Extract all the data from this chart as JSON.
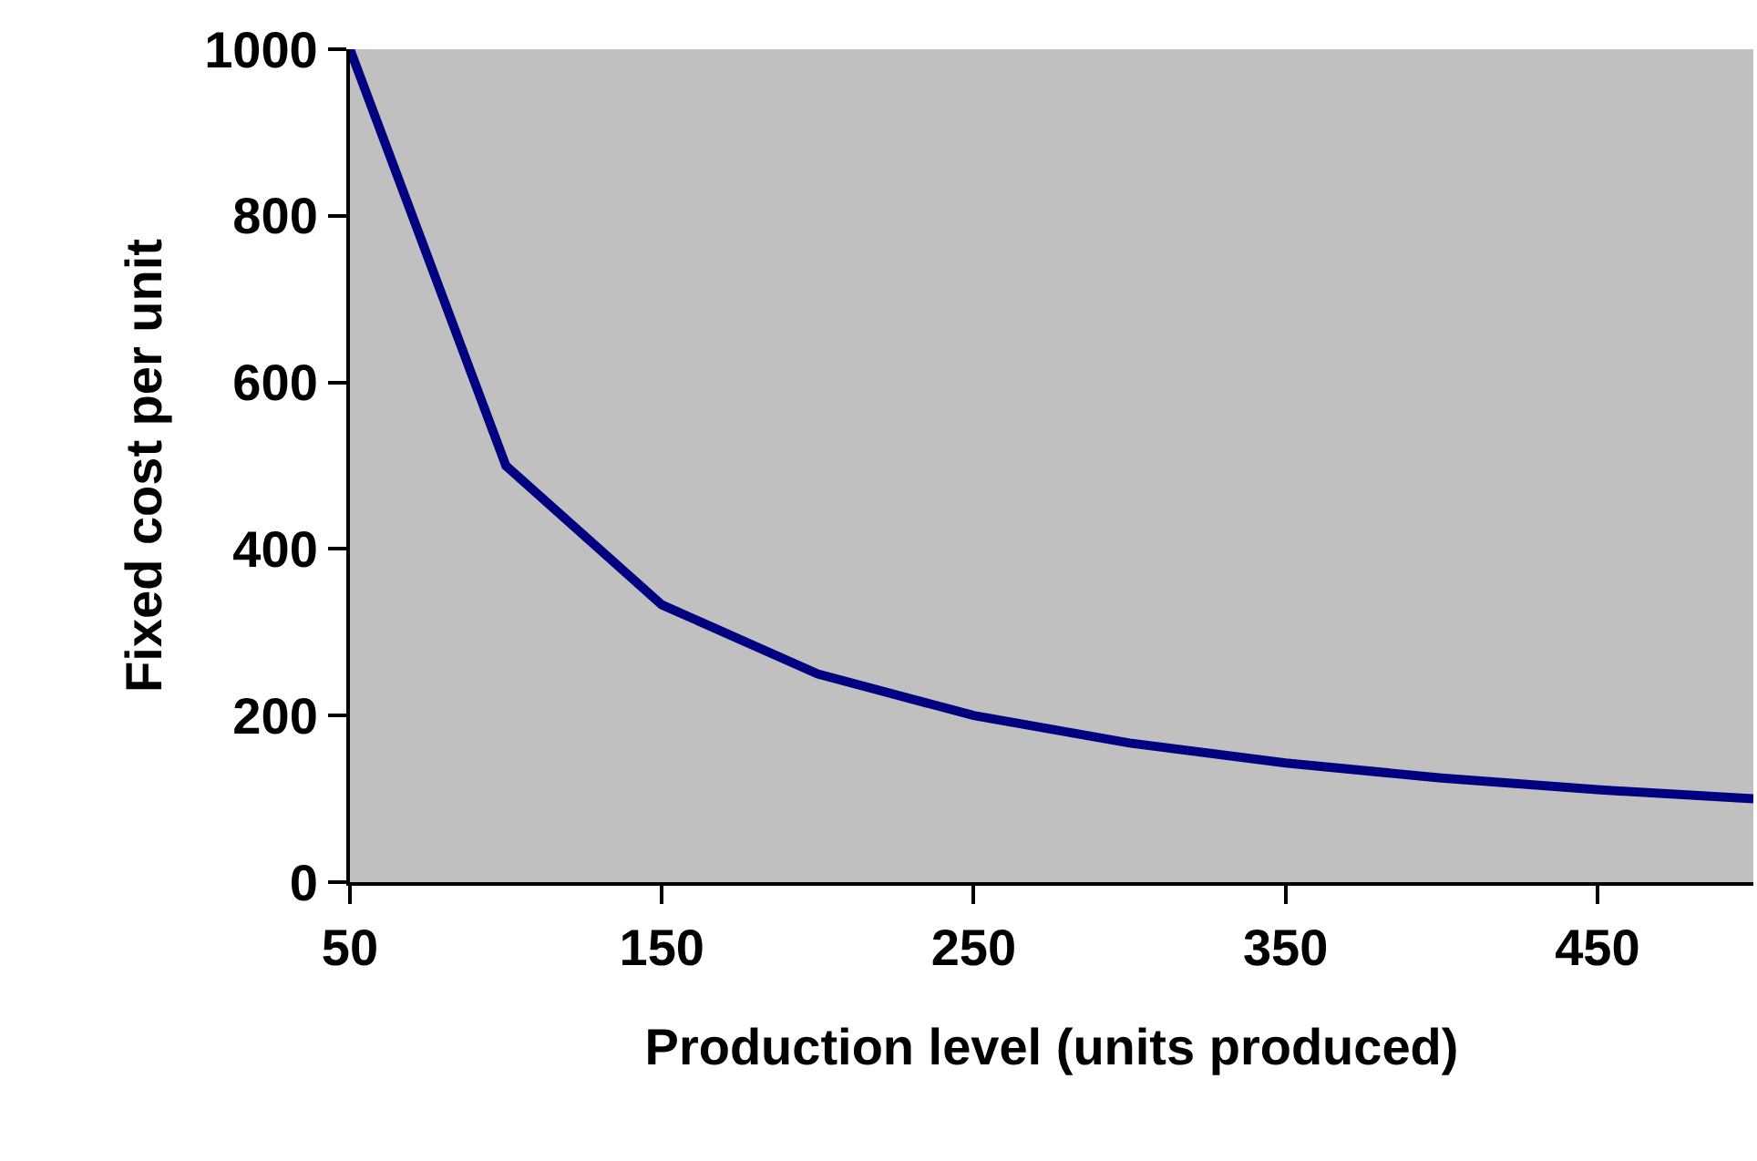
{
  "chart_data": {
    "type": "line",
    "xlabel": "Production level (units produced)",
    "ylabel": "Fixed cost per unit",
    "x": [
      50,
      100,
      150,
      200,
      250,
      300,
      350,
      400,
      450,
      500
    ],
    "series": [
      {
        "color": "#000080",
        "values": [
          1000,
          500,
          333,
          250,
          200,
          167,
          143,
          125,
          111,
          100
        ]
      }
    ],
    "xlim": [
      50,
      500
    ],
    "xticks": [
      50,
      150,
      250,
      350,
      450
    ],
    "ylim": [
      0,
      1000
    ],
    "yticks": [
      0,
      200,
      400,
      600,
      800,
      1000
    ],
    "grid": false,
    "marker": "none",
    "line_style": "solid"
  }
}
